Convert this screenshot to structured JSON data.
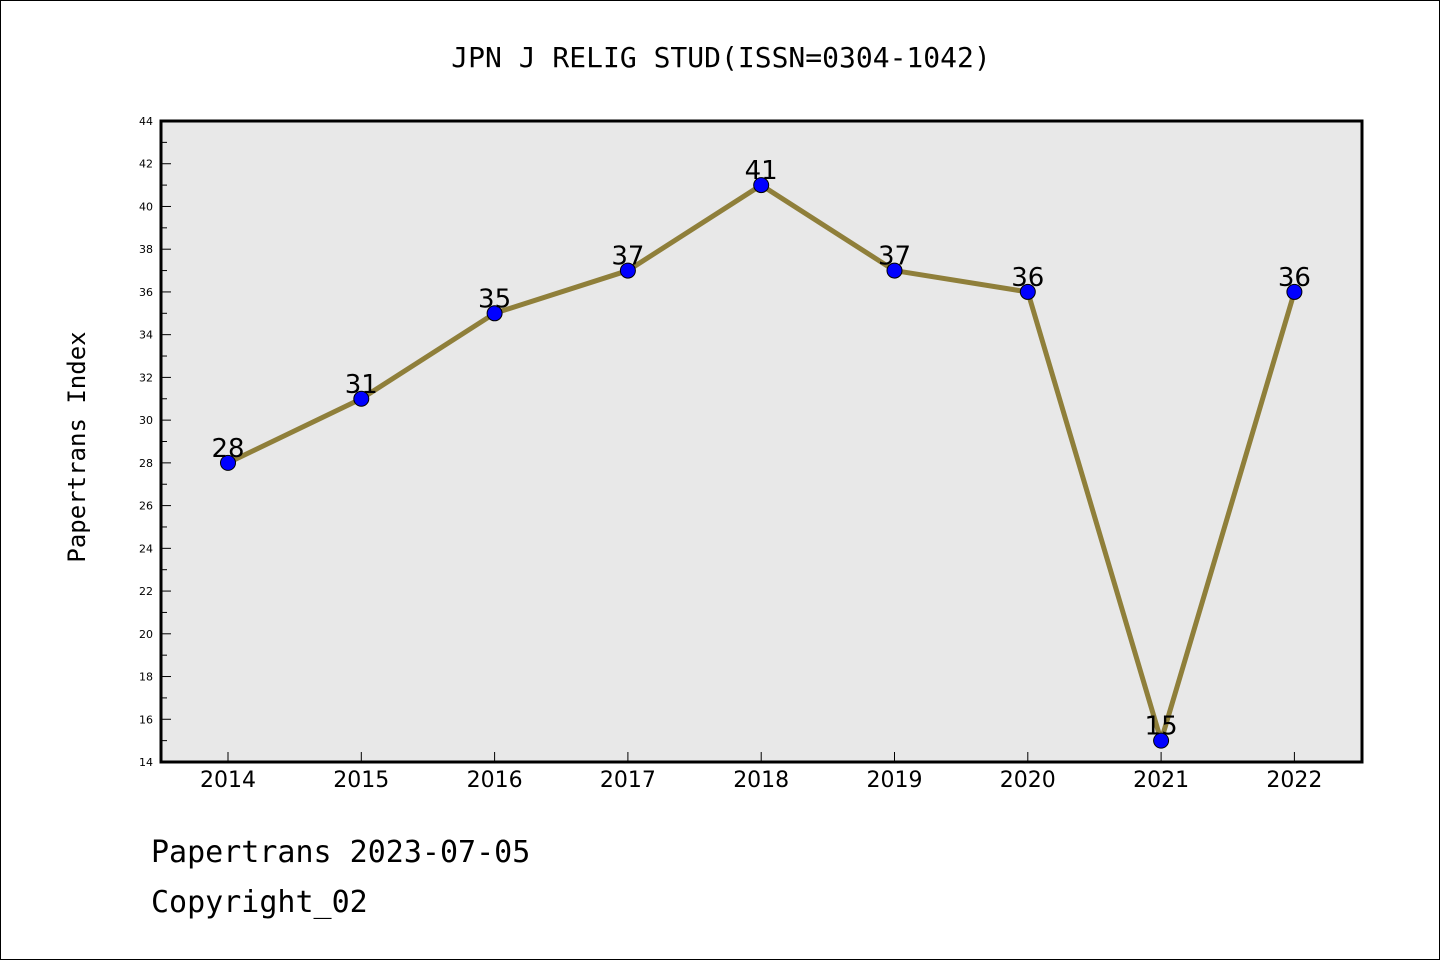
{
  "chart_data": {
    "type": "line",
    "title": "JPN J RELIG STUD(ISSN=0304-1042)",
    "xlabel": "",
    "ylabel": "Papertrans Index",
    "x": [
      "2014",
      "2015",
      "2016",
      "2017",
      "2018",
      "2019",
      "2020",
      "2021",
      "2022"
    ],
    "values": [
      28,
      31,
      35,
      37,
      41,
      37,
      36,
      15,
      36
    ],
    "ylim": [
      14,
      44
    ],
    "yticks": [
      14,
      16,
      18,
      20,
      22,
      24,
      26,
      28,
      30,
      32,
      34,
      36,
      38,
      40,
      42,
      44
    ],
    "data_labels": true,
    "grid": false,
    "legend": "none",
    "colors": {
      "line": "#8f7f3a",
      "marker": "#0000ff",
      "plot_background": "#e8e8e8"
    }
  },
  "footer": {
    "line1": "Papertrans 2023-07-05",
    "line2": "Copyright_02"
  }
}
